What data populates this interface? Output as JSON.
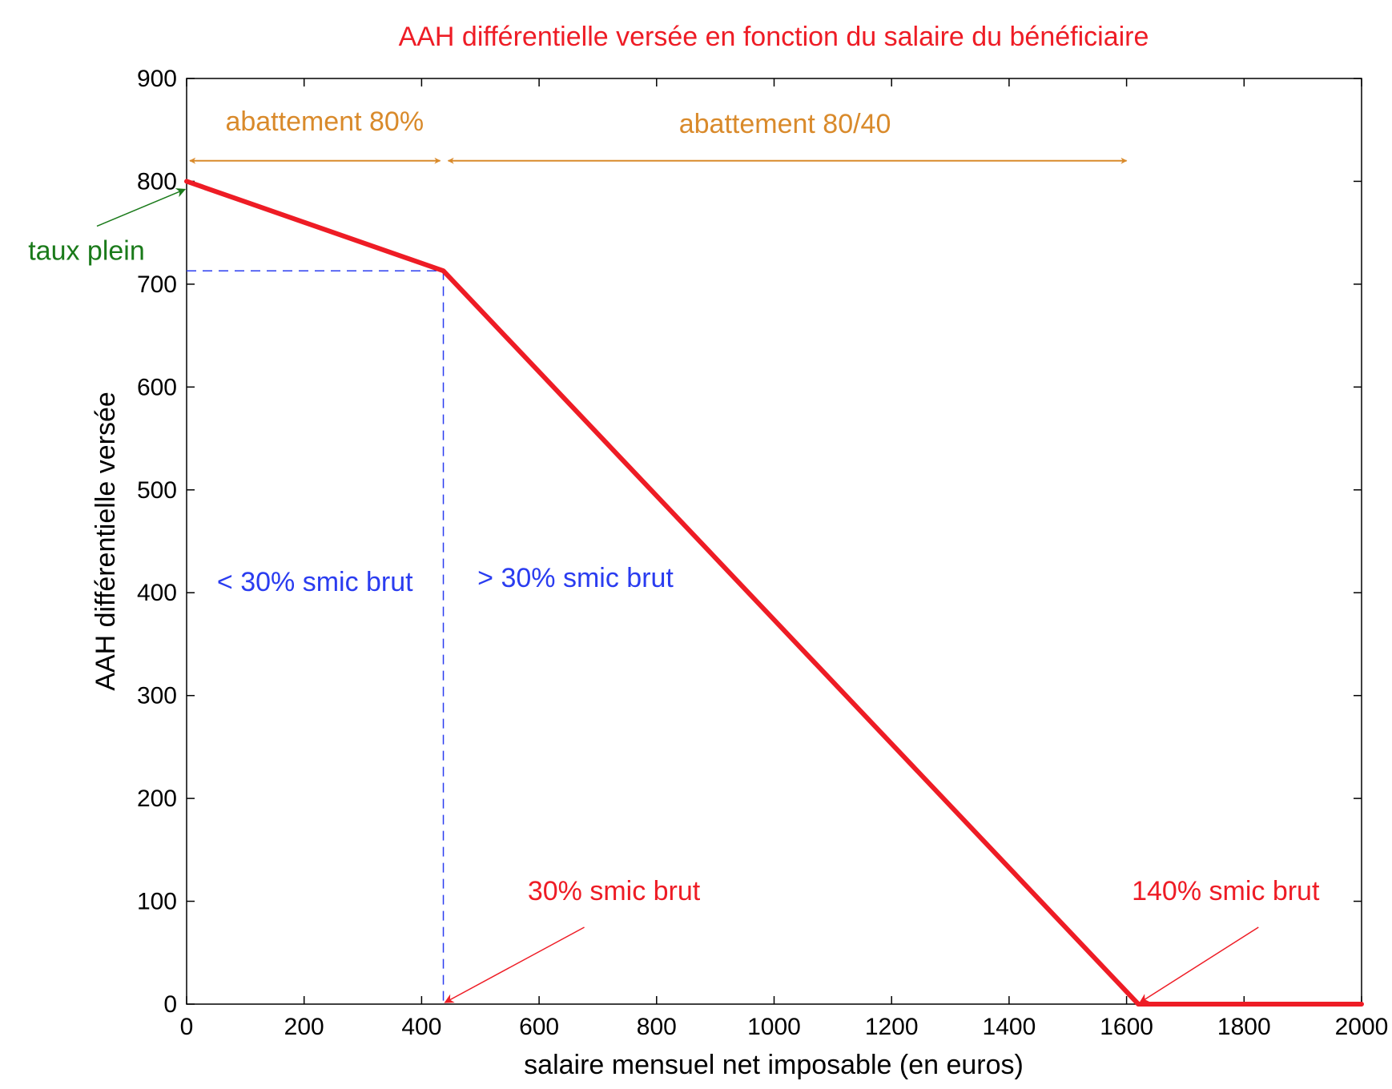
{
  "chart_data": {
    "type": "line",
    "title": "AAH différentielle versée en fonction du salaire du bénéficiaire",
    "xlabel": "salaire mensuel net imposable (en euros)",
    "ylabel": "AAH différentielle versée",
    "xlim": [
      0,
      2000
    ],
    "ylim": [
      0,
      900
    ],
    "xticks": [
      0,
      200,
      400,
      600,
      800,
      1000,
      1200,
      1400,
      1600,
      1800,
      2000
    ],
    "yticks": [
      0,
      100,
      200,
      300,
      400,
      500,
      600,
      700,
      800,
      900
    ],
    "grid": false,
    "series": [
      {
        "color": "#ee1c25",
        "style": "solid",
        "x": [
          0,
          437,
          1620,
          2000
        ],
        "y": [
          800,
          713,
          0,
          0
        ]
      }
    ],
    "guides": [
      {
        "color": "#2a3cf0",
        "style": "dashed",
        "x": [
          0,
          437,
          437
        ],
        "y": [
          713,
          713,
          0
        ]
      }
    ],
    "annotations": {
      "span_80": {
        "text": "abattement 80%",
        "color": "#d98a2b",
        "x_from": 0,
        "x_to": 437,
        "y": 820
      },
      "span_80_40": {
        "text": "abattement 80/40",
        "color": "#d98a2b",
        "x_from": 437,
        "x_to": 1600,
        "y": 820
      },
      "taux_plein": {
        "text": "taux plein",
        "color": "#1a7a1a",
        "x": 0,
        "y": 800
      },
      "below_30": {
        "text": "< 30% smic brut",
        "color": "#2a3cf0"
      },
      "above_30": {
        "text": "> 30% smic brut",
        "color": "#2a3cf0"
      },
      "smic_30": {
        "text": "30% smic brut",
        "color": "#ee1c25",
        "x": 437,
        "y": 0
      },
      "smic_140": {
        "text": "140% smic brut",
        "color": "#ee1c25",
        "x": 1620,
        "y": 0
      }
    }
  }
}
